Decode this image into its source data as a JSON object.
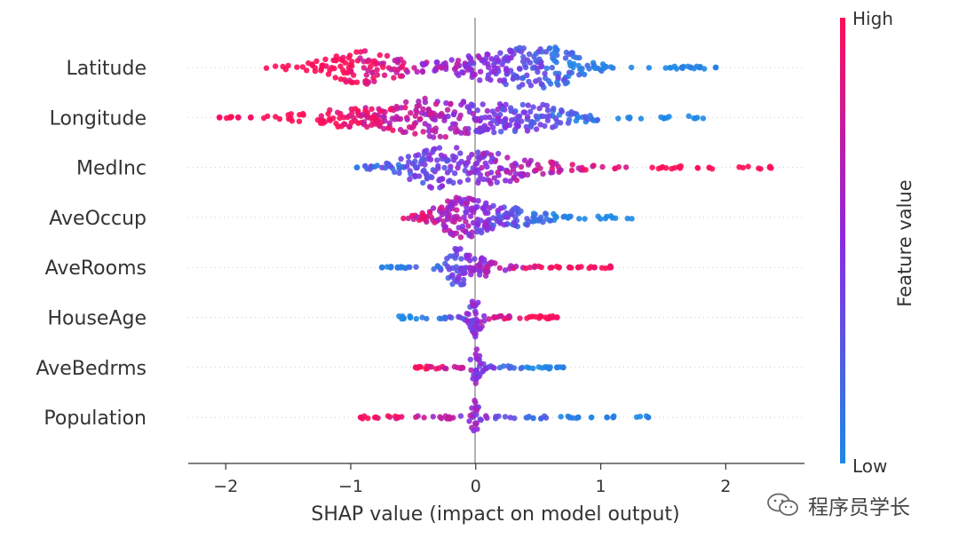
{
  "chart_data": {
    "type": "scatter",
    "subtype": "shap-beeswarm",
    "title": "",
    "xlabel": "SHAP value (impact on model output)",
    "ylabel": "",
    "xlim": [
      -2.3,
      2.63
    ],
    "xticks": [
      {
        "value": -2,
        "label": "−2"
      },
      {
        "value": -1,
        "label": "−1"
      },
      {
        "value": 0,
        "label": "0"
      },
      {
        "value": 1,
        "label": "1"
      },
      {
        "value": 2,
        "label": "2"
      }
    ],
    "colorbar": {
      "label": "Feature value",
      "high_label": "High",
      "low_label": "Low",
      "high_color": "#ff0d57",
      "mid_color": "#8a2be2",
      "low_color": "#1e88e5"
    },
    "features": [
      {
        "name": "Latitude",
        "min": -1.7,
        "max": 1.92,
        "low_side": "positive",
        "outliers": [
          1.65,
          1.72,
          1.79,
          1.92
        ],
        "peaks": [
          {
            "x": -0.9,
            "h": 0.75,
            "w": 0.25
          },
          {
            "x": 0.3,
            "h": 0.85,
            "w": 0.35
          },
          {
            "x": 0.62,
            "h": 0.7,
            "w": 0.12
          }
        ]
      },
      {
        "name": "Longitude",
        "min": -2.05,
        "max": 1.82,
        "low_side": "positive",
        "outliers": [
          -2.05,
          -1.9,
          -1.8
        ],
        "peaks": [
          {
            "x": -0.3,
            "h": 0.8,
            "w": 0.22
          },
          {
            "x": 0.35,
            "h": 0.7,
            "w": 0.3
          },
          {
            "x": -0.9,
            "h": 0.45,
            "w": 0.35
          }
        ]
      },
      {
        "name": "MedInc",
        "min": -0.95,
        "max": 2.4,
        "low_side": "negative",
        "outliers": [
          -0.95
        ],
        "peaks": [
          {
            "x": -0.3,
            "h": 0.9,
            "w": 0.22
          },
          {
            "x": 0.2,
            "h": 0.6,
            "w": 0.3
          }
        ]
      },
      {
        "name": "AveOccup",
        "min": -0.6,
        "max": 1.25,
        "low_side": "positive",
        "outliers": [],
        "peaks": [
          {
            "x": -0.15,
            "h": 0.8,
            "w": 0.15
          },
          {
            "x": 0.2,
            "h": 0.45,
            "w": 0.25
          }
        ]
      },
      {
        "name": "AveRooms",
        "min": -0.75,
        "max": 1.1,
        "low_side": "negative",
        "outliers": [
          -0.75,
          -0.68,
          -0.6,
          0.75,
          0.82,
          0.95,
          1.08
        ],
        "peaks": [
          {
            "x": -0.15,
            "h": 0.85,
            "w": 0.07
          },
          {
            "x": 0.05,
            "h": 0.4,
            "w": 0.1
          }
        ]
      },
      {
        "name": "HouseAge",
        "min": -0.7,
        "max": 0.65,
        "low_side": "negative",
        "outliers": [
          0.6,
          0.65
        ],
        "peaks": [
          {
            "x": 0.0,
            "h": 0.9,
            "w": 0.04
          }
        ]
      },
      {
        "name": "AveBedrms",
        "min": -0.48,
        "max": 0.7,
        "low_side": "positive",
        "outliers": [
          -0.48,
          0.58,
          0.65,
          0.7
        ],
        "peaks": [
          {
            "x": 0.0,
            "h": 0.9,
            "w": 0.03
          }
        ]
      },
      {
        "name": "Population",
        "min": -0.92,
        "max": 1.38,
        "low_side": "positive",
        "outliers": [
          -0.92,
          -0.8,
          -0.62,
          0.75,
          0.82,
          1.05,
          1.1,
          1.38
        ],
        "peaks": [
          {
            "x": 0.0,
            "h": 0.9,
            "w": 0.03
          }
        ]
      }
    ]
  },
  "watermark": {
    "text": "程序员学长",
    "icon": "wechat-icon"
  }
}
